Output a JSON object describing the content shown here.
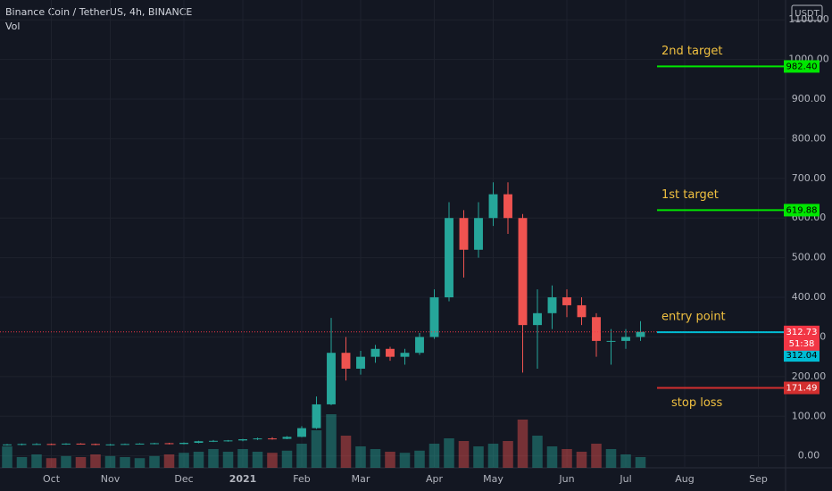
{
  "chart_data": {
    "type": "candlestick",
    "title": "Binance Coin / TetherUS, 4h, BINANCE",
    "subtitle": "Vol",
    "currency": "USDT",
    "categories": [
      null,
      null,
      null,
      "Oct",
      null,
      null,
      null,
      "Nov",
      null,
      null,
      null,
      null,
      "Dec",
      null,
      null,
      null,
      "2021",
      null,
      null,
      null,
      "Feb",
      null,
      null,
      null,
      "Mar",
      null,
      null,
      null,
      null,
      "Apr",
      null,
      null,
      null,
      "May",
      null,
      null,
      null,
      null,
      "Jun",
      null,
      null,
      null,
      "Jul",
      null,
      null,
      null,
      "Aug",
      null,
      null,
      null,
      null,
      "Sep",
      null
    ],
    "open": [
      28,
      29,
      30,
      30,
      29,
      31,
      30,
      28,
      29,
      30,
      31,
      32,
      30,
      33,
      37,
      38,
      39,
      42,
      44,
      43,
      48,
      70,
      130,
      260,
      220,
      250,
      270,
      250,
      260,
      300,
      400,
      600,
      520,
      600,
      660,
      600,
      330,
      360,
      400,
      380,
      350,
      290,
      290,
      300,
      null,
      null,
      null,
      null,
      null,
      null,
      null,
      null,
      null
    ],
    "high": [
      30,
      31,
      32,
      31,
      32,
      32,
      31,
      30,
      31,
      32,
      33,
      33,
      34,
      38,
      40,
      40,
      43,
      46,
      47,
      50,
      75,
      150,
      348,
      300,
      265,
      280,
      275,
      270,
      310,
      420,
      640,
      620,
      640,
      690,
      690,
      610,
      420,
      430,
      420,
      400,
      360,
      320,
      320,
      340,
      null,
      null,
      null,
      null,
      null,
      null,
      null,
      null,
      null
    ],
    "low": [
      26,
      27,
      28,
      28,
      28,
      29,
      27,
      26,
      28,
      29,
      29,
      29,
      29,
      32,
      35,
      36,
      37,
      40,
      41,
      42,
      47,
      68,
      128,
      190,
      205,
      235,
      240,
      230,
      255,
      295,
      390,
      450,
      500,
      580,
      560,
      210,
      220,
      320,
      350,
      330,
      250,
      230,
      270,
      290,
      null,
      null,
      null,
      null,
      null,
      null,
      null,
      null,
      null
    ],
    "close": [
      29,
      30,
      30,
      29,
      31,
      30,
      28,
      29,
      30,
      31,
      32,
      30,
      33,
      37,
      38,
      39,
      42,
      44,
      43,
      48,
      70,
      130,
      260,
      220,
      250,
      270,
      250,
      260,
      300,
      400,
      600,
      520,
      600,
      660,
      600,
      330,
      360,
      400,
      380,
      350,
      290,
      290,
      300,
      313,
      null,
      null,
      null,
      null,
      null,
      null,
      null,
      null,
      null
    ],
    "volume": [
      40,
      20,
      25,
      18,
      22,
      20,
      25,
      22,
      20,
      18,
      22,
      25,
      28,
      30,
      35,
      30,
      35,
      30,
      28,
      32,
      45,
      70,
      100,
      60,
      40,
      35,
      30,
      28,
      32,
      45,
      55,
      50,
      40,
      45,
      50,
      90,
      60,
      40,
      35,
      30,
      45,
      35,
      25,
      20,
      null,
      null,
      null,
      null,
      null,
      null,
      null,
      null,
      null
    ],
    "up_color": "#26a69a",
    "down_color": "#ef5350",
    "ylim": [
      -30,
      1150
    ],
    "yticks": [
      {
        "value": 0,
        "label": "0.00"
      },
      {
        "value": 100,
        "label": "100.00"
      },
      {
        "value": 200,
        "label": "200.00"
      },
      {
        "value": 300,
        "label": "300.00"
      },
      {
        "value": 400,
        "label": "400.00"
      },
      {
        "value": 500,
        "label": "500.00"
      },
      {
        "value": 600,
        "label": "600.00"
      },
      {
        "value": 700,
        "label": "700.00"
      },
      {
        "value": 800,
        "label": "800.00"
      },
      {
        "value": 900,
        "label": "900.00"
      },
      {
        "value": 1000,
        "label": "1000.00"
      },
      {
        "value": 1100,
        "label": "1100.00"
      }
    ],
    "grid": true,
    "last_price": {
      "value": 312.73,
      "label": "312.73",
      "color": "#f23645"
    },
    "countdown": "51:38",
    "annotations": [
      {
        "text": "2nd target",
        "value": 982.4,
        "label": "982.40",
        "color": "#00e600"
      },
      {
        "text": "1st target",
        "value": 619.88,
        "label": "619.88",
        "color": "#00e600"
      },
      {
        "text": "entry point",
        "value": 312.04,
        "label": "312.04",
        "color": "#00bcd4"
      },
      {
        "text": "stop loss",
        "value": 171.49,
        "label": "171.49",
        "color": "#d32f2f"
      }
    ]
  }
}
